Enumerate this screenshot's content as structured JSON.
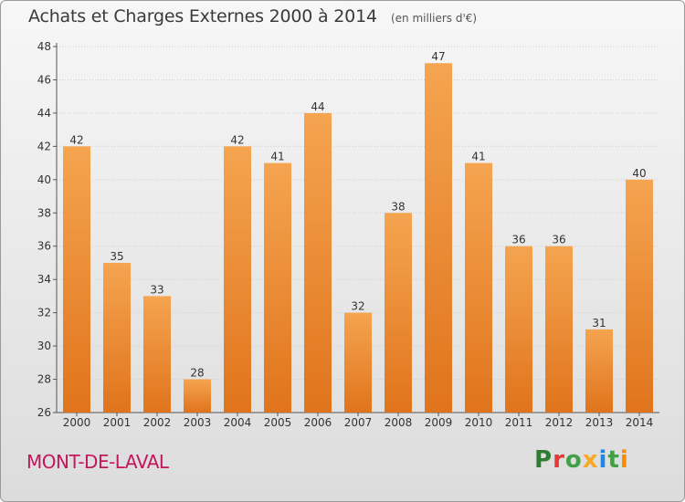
{
  "header": {
    "title": "Achats et Charges Externes 2000 à 2014",
    "unit": "(en milliers d'€)"
  },
  "footer": {
    "location": "MONT-DE-LAVAL",
    "brand": "Proxiti"
  },
  "colors": {
    "bar_top": "#f5a450",
    "bar_bottom": "#e0741c",
    "location_text": "#c2185b",
    "brand_letters": [
      "#2e7d32",
      "#e53935",
      "#43a047",
      "#f9a825",
      "#1e88e5",
      "#43a047",
      "#fb8c00"
    ]
  },
  "chart_data": {
    "type": "bar",
    "title": "Achats et Charges Externes 2000 à 2014",
    "subtitle": "(en milliers d'€)",
    "xlabel": "",
    "ylabel": "",
    "categories": [
      "2000",
      "2001",
      "2002",
      "2003",
      "2004",
      "2005",
      "2006",
      "2007",
      "2008",
      "2009",
      "2010",
      "2011",
      "2012",
      "2013",
      "2014"
    ],
    "values": [
      42,
      35,
      33,
      28,
      42,
      41,
      44,
      32,
      38,
      47,
      41,
      36,
      36,
      31,
      40
    ],
    "ylim": [
      26,
      48
    ],
    "yticks": [
      26,
      28,
      30,
      32,
      34,
      36,
      38,
      40,
      42,
      44,
      46,
      48
    ],
    "grid": true,
    "legend": "none"
  }
}
